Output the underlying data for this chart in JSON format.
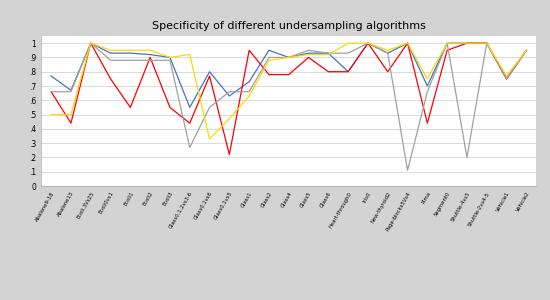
{
  "title": "Specificity of different undersampling algorithms",
  "categories": [
    "Abalone9-18",
    "Abalone13",
    "Ecoli.3Vs25",
    "Ecoli0vs1",
    "Ecoli1",
    "Ecoli2",
    "Ecoli3",
    "Glass0.1.2vs3-6",
    "Glass0.1vs6",
    "Glass0.1vs5",
    "Glass1",
    "Glass2",
    "Glass4",
    "Glass5",
    "Glass6",
    "Heart-through0",
    "Iris0",
    "New-thyroid2",
    "Page-blocks5Vs4",
    "Pima",
    "Segment0",
    "Shuttle-4vs5",
    "Shuttle-2vs4-5",
    "Vehicle1",
    "Vehicle2"
  ],
  "Proposed": [
    0.77,
    0.67,
    1.0,
    0.93,
    0.93,
    0.92,
    0.9,
    0.55,
    0.8,
    0.63,
    0.73,
    0.95,
    0.9,
    0.93,
    0.93,
    0.8,
    1.0,
    0.93,
    1.0,
    0.7,
    1.0,
    1.0,
    1.0,
    0.75,
    0.95
  ],
  "SSC": [
    0.66,
    0.44,
    1.0,
    0.75,
    0.55,
    0.9,
    0.55,
    0.44,
    0.77,
    0.22,
    0.95,
    0.78,
    0.78,
    0.9,
    0.8,
    0.8,
    1.0,
    0.8,
    1.0,
    0.44,
    0.95,
    1.0,
    1.0,
    0.75,
    0.95
  ],
  "OBU": [
    0.66,
    0.66,
    1.0,
    0.88,
    0.88,
    0.88,
    0.88,
    0.27,
    0.55,
    0.66,
    0.66,
    0.9,
    0.9,
    0.95,
    0.93,
    0.93,
    1.0,
    0.93,
    0.11,
    0.66,
    1.0,
    0.2,
    1.0,
    0.75,
    0.95
  ],
  "KMUS": [
    0.5,
    0.5,
    1.0,
    0.95,
    0.95,
    0.95,
    0.9,
    0.92,
    0.33,
    0.47,
    0.63,
    0.88,
    0.9,
    0.92,
    0.92,
    1.0,
    1.0,
    0.95,
    1.0,
    0.75,
    1.0,
    1.0,
    1.0,
    0.77,
    0.95
  ],
  "colors": {
    "Proposed": "#4472C4",
    "SSC": "#FF0000",
    "OBU": "#A0A0A0",
    "KMUS": "#FFD700"
  },
  "ylim": [
    0,
    1.05
  ],
  "yticks": [
    0,
    0.1,
    0.2,
    0.3,
    0.4,
    0.5,
    0.6,
    0.7,
    0.8,
    0.9,
    1
  ],
  "ytick_labels": [
    "0",
    ".1",
    ".2",
    ".3",
    ".4",
    ".5",
    ".6",
    ".7",
    ".8",
    ".9",
    "1"
  ],
  "bg_color": "#D3D3D3",
  "plot_bg": "#FFFFFF"
}
